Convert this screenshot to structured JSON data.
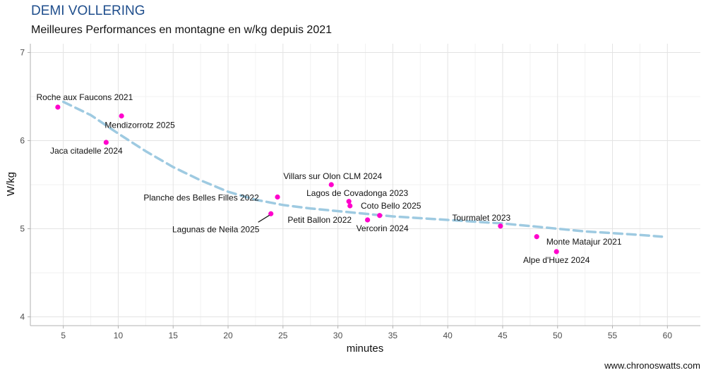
{
  "title": "DEMI VOLLERING",
  "subtitle": "Meilleures Performances en montagne en w/kg depuis 2021",
  "credit": "www.chronoswatts.com",
  "colors": {
    "points": "#ff00cc",
    "trend": "#9ecae1",
    "title": "#1f4e8c"
  },
  "chart_data": {
    "type": "scatter",
    "xlabel": "minutes",
    "ylabel": "W/kg",
    "xlim": [
      2,
      63
    ],
    "ylim": [
      3.9,
      7.1
    ],
    "xticks": [
      5,
      10,
      15,
      20,
      25,
      30,
      35,
      40,
      45,
      50,
      55,
      60
    ],
    "yticks": [
      4,
      5,
      6,
      7
    ],
    "grid": true,
    "points": [
      {
        "label": "Roche aux Faucons 2021",
        "x": 4.5,
        "y": 6.38
      },
      {
        "label": "Mendizorrotz 2025",
        "x": 10.3,
        "y": 6.28
      },
      {
        "label": "Jaca citadelle 2024",
        "x": 8.9,
        "y": 5.98
      },
      {
        "label": "Villars sur Olon CLM 2024",
        "x": 29.4,
        "y": 5.5
      },
      {
        "label": "Planche des Belles Filles 2022",
        "x": 24.5,
        "y": 5.36
      },
      {
        "label": "Lagos de Covadonga 2023",
        "x": 31.0,
        "y": 5.31
      },
      {
        "label": "Coto Bello 2025",
        "x": 31.1,
        "y": 5.26
      },
      {
        "label": "Petit Ballon 2022",
        "x": 33.8,
        "y": 5.15
      },
      {
        "label": "Vercorin 2024",
        "x": 32.7,
        "y": 5.1
      },
      {
        "label": "Lagunas de Neila 2025",
        "x": 23.9,
        "y": 5.17
      },
      {
        "label": "Tourmalet 2023",
        "x": 44.8,
        "y": 5.03
      },
      {
        "label": "Monte Matajur 2021",
        "x": 48.1,
        "y": 4.91
      },
      {
        "label": "Alpe d'Huez 2024",
        "x": 49.9,
        "y": 4.74
      }
    ],
    "trend": {
      "style": "dashed",
      "x": [
        5,
        7.5,
        10,
        12.5,
        15,
        17.5,
        20,
        22.5,
        25,
        27.5,
        30,
        32.5,
        35,
        37.5,
        40,
        42.5,
        45,
        47.5,
        50,
        52.5,
        55,
        57.5,
        59.5
      ],
      "y": [
        6.44,
        6.29,
        6.08,
        5.88,
        5.7,
        5.55,
        5.42,
        5.33,
        5.27,
        5.23,
        5.2,
        5.17,
        5.14,
        5.12,
        5.1,
        5.08,
        5.06,
        5.03,
        5.0,
        4.97,
        4.95,
        4.93,
        4.91
      ]
    }
  }
}
